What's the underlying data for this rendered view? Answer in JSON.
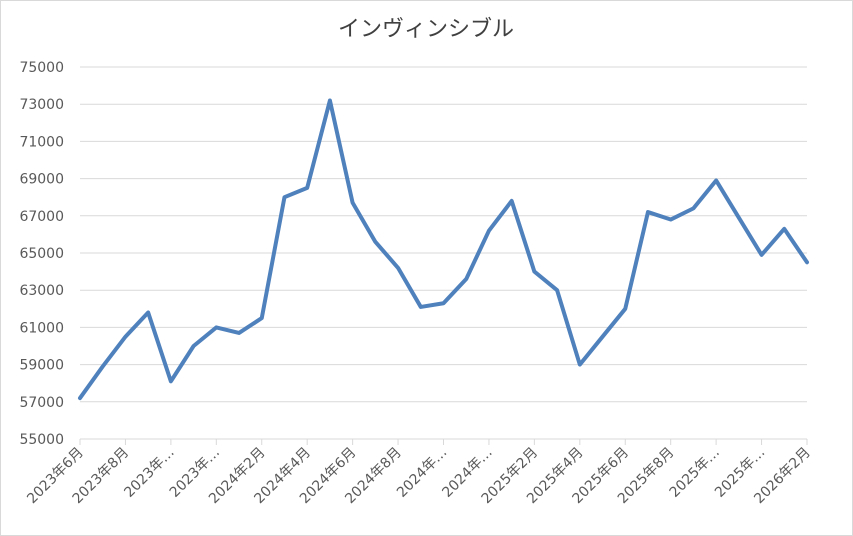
{
  "chart_data": {
    "type": "line",
    "title": "インヴィンシブル",
    "categories": [
      "2023年6月",
      null,
      "2023年8月",
      null,
      "2023年…",
      null,
      "2023年…",
      null,
      "2024年2月",
      null,
      "2024年4月",
      null,
      "2024年6月",
      null,
      "2024年8月",
      null,
      "2024年…",
      null,
      "2024年…",
      null,
      "2025年2月",
      null,
      "2025年4月",
      null,
      "2025年6月",
      null,
      "2025年8月",
      null,
      "2025年…",
      null,
      "2025年…",
      null,
      "2026年2月"
    ],
    "series": [
      {
        "name": "インヴィンシブル",
        "color": "#4f81bd",
        "values": [
          57200,
          58900,
          60500,
          61800,
          58100,
          60000,
          61000,
          60700,
          61500,
          68000,
          68500,
          73200,
          67700,
          65600,
          64200,
          62100,
          62300,
          63600,
          66200,
          67800,
          64000,
          63000,
          59000,
          60500,
          62000,
          67200,
          66800,
          67400,
          68900,
          66900,
          64900,
          66300,
          64500
        ]
      }
    ],
    "ylim": [
      55000,
      75000
    ],
    "yticks": [
      55000,
      57000,
      59000,
      61000,
      63000,
      65000,
      67000,
      69000,
      71000,
      73000,
      75000
    ],
    "grid": true
  }
}
